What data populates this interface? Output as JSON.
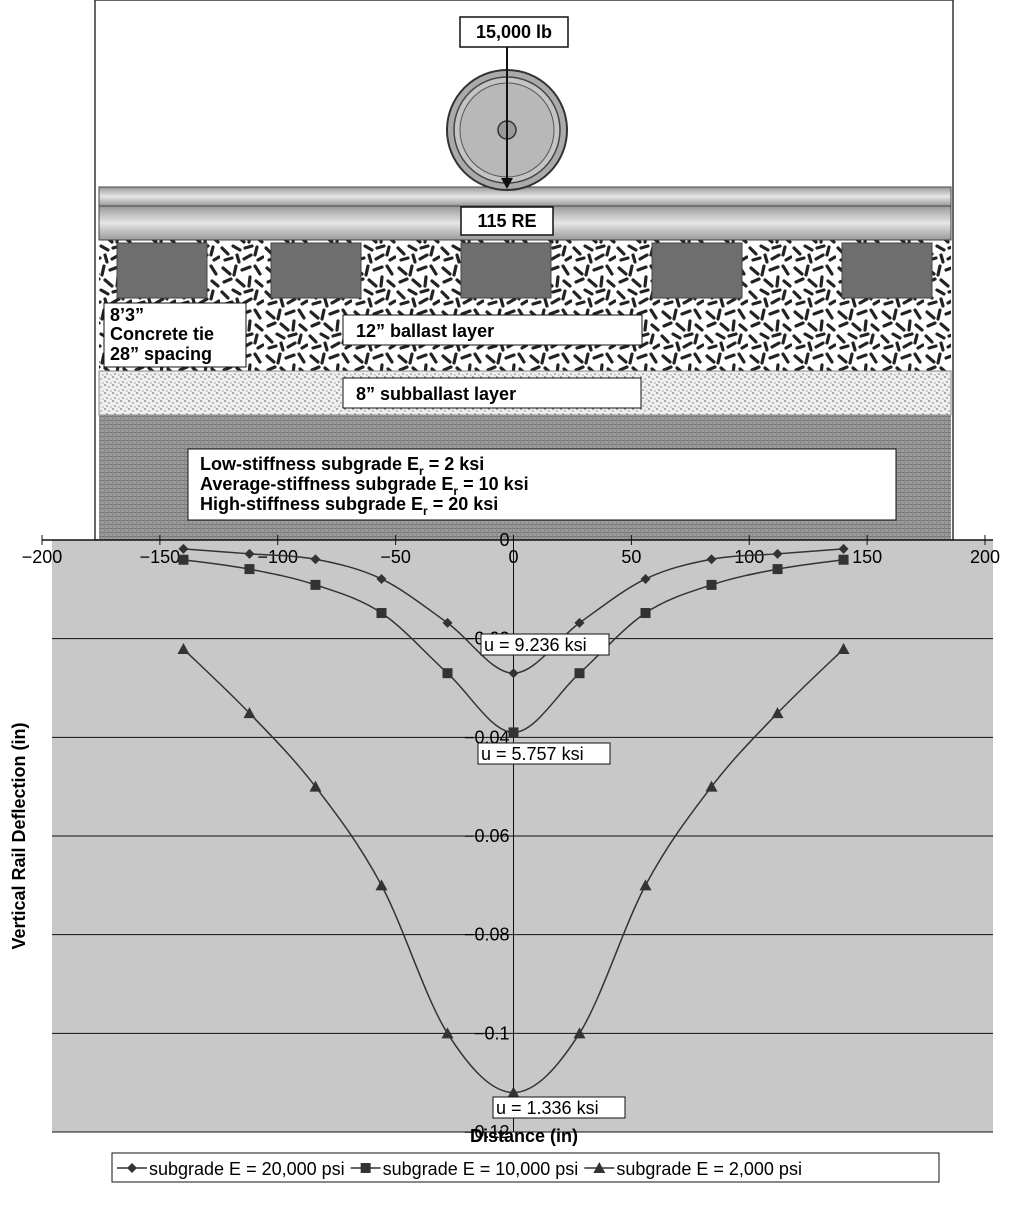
{
  "illustration": {
    "load": "15,000 lb",
    "rail": "115 RE",
    "tie": [
      "8’3”",
      "Concrete tie",
      "28” spacing"
    ],
    "ballast": "12” ballast layer",
    "subballast": "8” subballast layer",
    "subgrade": [
      {
        "text": "Low-stiffness subgrade E",
        "sub": "r",
        "rest": "= 2 ksi"
      },
      {
        "text": "Average-stiffness subgrade E",
        "sub": "r",
        "rest": "= 10 ksi"
      },
      {
        "text": "High-stiffness subgrade E",
        "sub": "r",
        "rest": "= 20 ksi"
      }
    ]
  },
  "chart_data": {
    "type": "line",
    "x_label": "Distance (in)",
    "y_label": "Vertical Rail Deflection (in)",
    "xlim": [
      -200,
      200
    ],
    "ylim": [
      -0.12,
      0
    ],
    "xticks": [
      {
        "value": -200,
        "label": "−200"
      },
      {
        "value": -150,
        "label": "−150"
      },
      {
        "value": -100,
        "label": "−100"
      },
      {
        "value": -50,
        "label": "−50"
      },
      0,
      50,
      100,
      150,
      200
    ],
    "yticks": [
      0,
      {
        "value": -0.02,
        "label": "−0.02"
      },
      {
        "value": -0.04,
        "label": "−0.04"
      },
      {
        "value": -0.06,
        "label": "−0.06"
      },
      {
        "value": -0.08,
        "label": "−0.08"
      },
      {
        "value": -0.1,
        "label": "−0.1"
      },
      {
        "value": -0.12,
        "label": "−0.12"
      }
    ],
    "grid": true,
    "background": "#c8c8c8",
    "x": [
      -140,
      -112,
      -84,
      -56,
      -28,
      0,
      28,
      56,
      84,
      112,
      140
    ],
    "series": [
      {
        "name": "subgrade E = 20,000 psi",
        "color": "#333333",
        "marker": "diamond",
        "values": [
          -0.0018,
          -0.0028,
          -0.0039,
          -0.0079,
          -0.0168,
          -0.027,
          -0.0168,
          -0.0079,
          -0.0039,
          -0.0028,
          -0.0018
        ]
      },
      {
        "name": "subgrade E = 10,000 psi",
        "color": "#333333",
        "marker": "square",
        "values": [
          -0.004,
          -0.0059,
          -0.0091,
          -0.0148,
          -0.027,
          -0.039,
          -0.027,
          -0.0148,
          -0.0091,
          -0.0059,
          -0.004
        ]
      },
      {
        "name": "subgrade E = 2,000 psi",
        "color": "#333333",
        "marker": "triangle",
        "values": [
          -0.0221,
          -0.0351,
          -0.05,
          -0.07,
          -0.1,
          -0.112,
          -0.1,
          -0.07,
          -0.05,
          -0.0351,
          -0.0221
        ]
      }
    ],
    "annotations": [
      "u = 9.236 ksi",
      "u = 5.757 ksi",
      "u = 1.336 ksi"
    ]
  }
}
